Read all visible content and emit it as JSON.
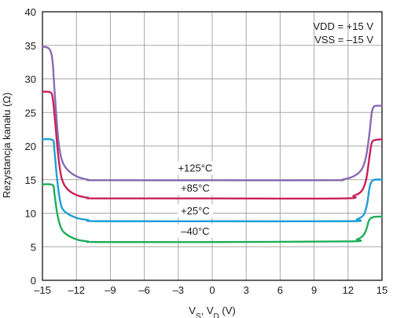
{
  "chart_data": {
    "type": "line",
    "ylabel": "Rezystancja kanału (Ω)",
    "xlabel": {
      "main": "V",
      "sub1": "S",
      "mid": ", V",
      "sub2": "D",
      "unit": " (V)"
    },
    "xlim": [
      -15,
      15
    ],
    "ylim": [
      0,
      40
    ],
    "x_ticks": [
      -15,
      -12,
      -9,
      -6,
      -3,
      0,
      3,
      6,
      9,
      12,
      15
    ],
    "x_tick_labels": [
      "–15",
      "–12",
      "–9",
      "–6",
      "–3",
      "0",
      "3",
      "6",
      "9",
      "12",
      "15"
    ],
    "y_ticks": [
      0,
      5,
      10,
      15,
      20,
      25,
      30,
      35,
      40
    ],
    "y_tick_labels": [
      "0",
      "5",
      "10",
      "15",
      "20",
      "25",
      "30",
      "35",
      "40"
    ],
    "grid": true,
    "annotations": [
      "VDD = +15 V",
      "VSS = –15 V"
    ],
    "series": [
      {
        "name": "+125°C",
        "color": "#8a6bb4",
        "points": [
          [
            -15,
            34.8
          ],
          [
            -14.6,
            34.7
          ],
          [
            -14.3,
            34.2
          ],
          [
            -14.1,
            32.5
          ],
          [
            -13.9,
            27.5
          ],
          [
            -13.6,
            21.0
          ],
          [
            -13.3,
            18.0
          ],
          [
            -12.8,
            16.5
          ],
          [
            -12.0,
            15.5
          ],
          [
            -11.0,
            15.0
          ],
          [
            -10.0,
            14.9
          ],
          [
            0,
            14.9
          ],
          [
            10.5,
            14.9
          ],
          [
            11.5,
            15.0
          ],
          [
            12.5,
            15.5
          ],
          [
            13.2,
            16.5
          ],
          [
            13.6,
            18.5
          ],
          [
            13.9,
            22.0
          ],
          [
            14.1,
            25.0
          ],
          [
            14.3,
            25.9
          ],
          [
            14.6,
            26.0
          ],
          [
            15,
            26.0
          ]
        ],
        "label_at": [
          -1.5,
          16.2
        ]
      },
      {
        "name": "+85°C",
        "color": "#c8235a",
        "points": [
          [
            -15,
            28.1
          ],
          [
            -14.3,
            28.0
          ],
          [
            -14.1,
            27.2
          ],
          [
            -13.9,
            24.0
          ],
          [
            -13.6,
            18.5
          ],
          [
            -13.3,
            15.2
          ],
          [
            -12.8,
            13.6
          ],
          [
            -12.0,
            12.7
          ],
          [
            -11.0,
            12.3
          ],
          [
            -10.0,
            12.2
          ],
          [
            0,
            12.2
          ],
          [
            11.5,
            12.2
          ],
          [
            12.5,
            12.6
          ],
          [
            13.2,
            13.3
          ],
          [
            13.6,
            15.0
          ],
          [
            13.9,
            18.5
          ],
          [
            14.1,
            20.5
          ],
          [
            14.4,
            20.9
          ],
          [
            15,
            21.0
          ]
        ],
        "label_at": [
          -1.5,
          13.2
        ]
      },
      {
        "name": "+25°C",
        "color": "#1f9ed4",
        "points": [
          [
            -15,
            21.0
          ],
          [
            -14.1,
            20.9
          ],
          [
            -13.95,
            19.5
          ],
          [
            -13.7,
            15.0
          ],
          [
            -13.4,
            11.5
          ],
          [
            -13.0,
            10.2
          ],
          [
            -12.0,
            9.3
          ],
          [
            -11.0,
            9.0
          ],
          [
            -10.0,
            8.8
          ],
          [
            0,
            8.8
          ],
          [
            12.0,
            8.8
          ],
          [
            12.8,
            9.1
          ],
          [
            13.4,
            9.8
          ],
          [
            13.7,
            11.5
          ],
          [
            13.9,
            13.8
          ],
          [
            14.2,
            14.9
          ],
          [
            15,
            15.0
          ]
        ],
        "label_at": [
          -1.5,
          9.8
        ]
      },
      {
        "name": "–40°C",
        "color": "#1fae5a",
        "points": [
          [
            -15,
            14.3
          ],
          [
            -14.1,
            14.2
          ],
          [
            -13.95,
            13.0
          ],
          [
            -13.7,
            10.0
          ],
          [
            -13.4,
            8.0
          ],
          [
            -13.0,
            7.0
          ],
          [
            -12.0,
            6.1
          ],
          [
            -11.0,
            5.8
          ],
          [
            -10.0,
            5.7
          ],
          [
            0,
            5.7
          ],
          [
            12.0,
            5.8
          ],
          [
            12.8,
            6.1
          ],
          [
            13.3,
            6.6
          ],
          [
            13.6,
            7.5
          ],
          [
            13.85,
            8.9
          ],
          [
            14.2,
            9.4
          ],
          [
            15,
            9.5
          ]
        ],
        "label_at": [
          -1.5,
          6.8
        ]
      }
    ]
  }
}
